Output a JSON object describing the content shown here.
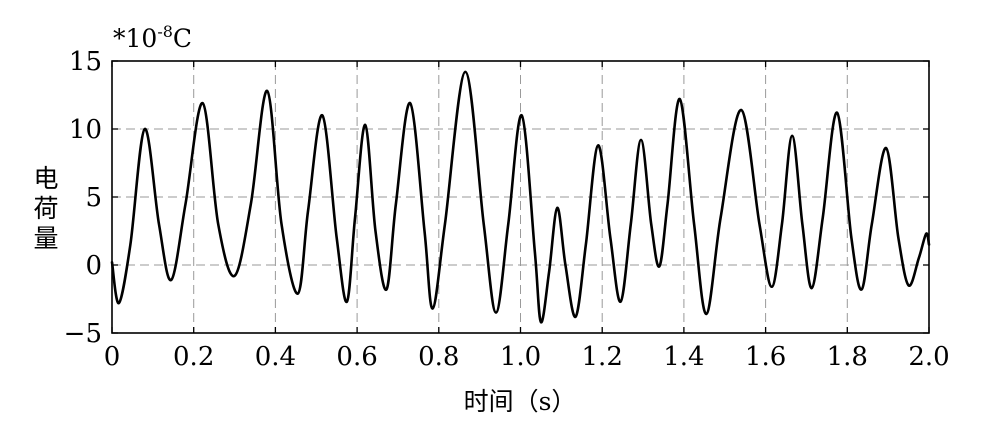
{
  "chart_data": {
    "type": "line",
    "title": "",
    "unit_label": "*10",
    "unit_exponent": "-8",
    "unit_suffix": "C",
    "xlabel": "时间（s）",
    "ylabel": "电荷量",
    "xlim": [
      0,
      2.0
    ],
    "ylim": [
      -5,
      15
    ],
    "grid": true,
    "x_ticks": [
      {
        "value": 0,
        "label": "0"
      },
      {
        "value": 0.2,
        "label": "0.2"
      },
      {
        "value": 0.4,
        "label": "0.4"
      },
      {
        "value": 0.6,
        "label": "0.6"
      },
      {
        "value": 0.8,
        "label": "0.8"
      },
      {
        "value": 1.0,
        "label": "1.0"
      },
      {
        "value": 1.2,
        "label": "1.2"
      },
      {
        "value": 1.4,
        "label": "1.4"
      },
      {
        "value": 1.6,
        "label": "1.6"
      },
      {
        "value": 1.8,
        "label": "1.8"
      },
      {
        "value": 2.0,
        "label": "2.0"
      }
    ],
    "y_ticks": [
      {
        "value": -5,
        "label": "−5"
      },
      {
        "value": 0,
        "label": "0"
      },
      {
        "value": 5,
        "label": "5"
      },
      {
        "value": 10,
        "label": "10"
      },
      {
        "value": 15,
        "label": "15"
      }
    ],
    "series": [
      {
        "color": "#000000",
        "points": [
          [
            0.0,
            0.2
          ],
          [
            0.017,
            -2.8
          ],
          [
            0.045,
            1.5
          ],
          [
            0.08,
            10.0
          ],
          [
            0.115,
            3.0
          ],
          [
            0.145,
            -1.1
          ],
          [
            0.18,
            4.5
          ],
          [
            0.222,
            11.9
          ],
          [
            0.26,
            3.0
          ],
          [
            0.3,
            -0.8
          ],
          [
            0.34,
            4.5
          ],
          [
            0.38,
            12.8
          ],
          [
            0.415,
            3.0
          ],
          [
            0.455,
            -2.1
          ],
          [
            0.48,
            4.0
          ],
          [
            0.515,
            11.0
          ],
          [
            0.55,
            2.0
          ],
          [
            0.575,
            -2.7
          ],
          [
            0.595,
            3.5
          ],
          [
            0.62,
            10.3
          ],
          [
            0.645,
            2.5
          ],
          [
            0.672,
            -1.8
          ],
          [
            0.695,
            4.5
          ],
          [
            0.73,
            11.9
          ],
          [
            0.765,
            2.5
          ],
          [
            0.785,
            -3.2
          ],
          [
            0.815,
            3.0
          ],
          [
            0.865,
            14.2
          ],
          [
            0.91,
            3.0
          ],
          [
            0.94,
            -3.5
          ],
          [
            0.97,
            3.0
          ],
          [
            1.003,
            11.0
          ],
          [
            1.035,
            1.0
          ],
          [
            1.05,
            -4.2
          ],
          [
            1.07,
            -0.5
          ],
          [
            1.09,
            4.2
          ],
          [
            1.11,
            0.0
          ],
          [
            1.135,
            -3.8
          ],
          [
            1.16,
            1.5
          ],
          [
            1.19,
            8.8
          ],
          [
            1.22,
            2.0
          ],
          [
            1.245,
            -2.7
          ],
          [
            1.27,
            3.0
          ],
          [
            1.295,
            9.2
          ],
          [
            1.32,
            3.0
          ],
          [
            1.34,
            -0.1
          ],
          [
            1.36,
            4.5
          ],
          [
            1.39,
            12.2
          ],
          [
            1.425,
            3.0
          ],
          [
            1.455,
            -3.6
          ],
          [
            1.49,
            3.5
          ],
          [
            1.54,
            11.4
          ],
          [
            1.585,
            3.0
          ],
          [
            1.615,
            -1.6
          ],
          [
            1.64,
            3.0
          ],
          [
            1.665,
            9.5
          ],
          [
            1.69,
            3.0
          ],
          [
            1.713,
            -1.7
          ],
          [
            1.74,
            3.5
          ],
          [
            1.775,
            11.2
          ],
          [
            1.81,
            2.0
          ],
          [
            1.835,
            -1.8
          ],
          [
            1.86,
            3.0
          ],
          [
            1.895,
            8.6
          ],
          [
            1.925,
            2.0
          ],
          [
            1.95,
            -1.5
          ],
          [
            1.975,
            0.5
          ],
          [
            1.993,
            2.3
          ],
          [
            2.0,
            1.5
          ]
        ]
      }
    ]
  }
}
